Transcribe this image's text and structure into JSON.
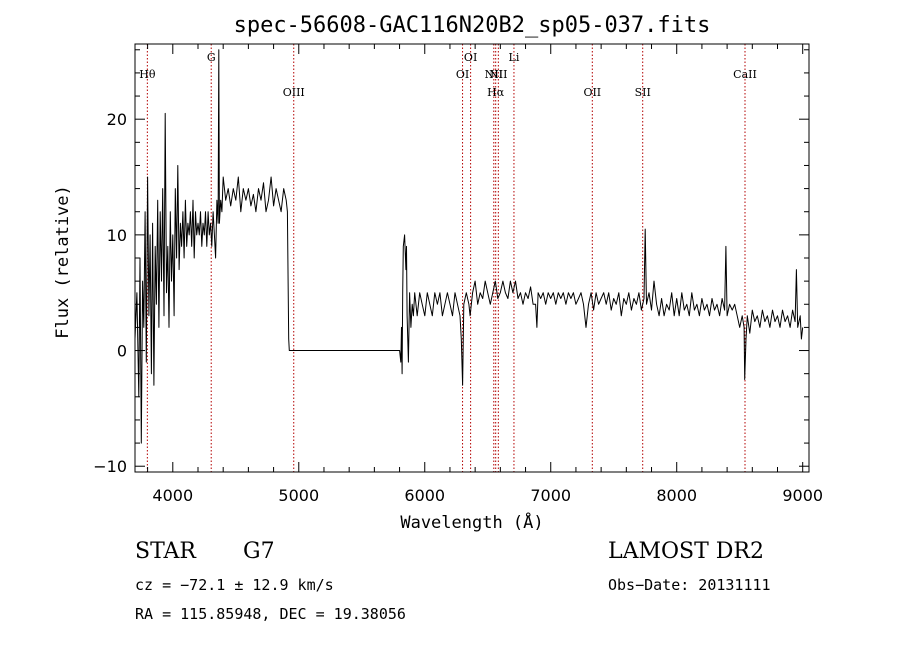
{
  "chart_data": {
    "type": "line",
    "title": "spec-56608-GAC116N20B2_sp05-037.fits",
    "xlabel": "Wavelength (Å)",
    "ylabel": "Flux (relative)",
    "xlim": [
      3700,
      9050
    ],
    "ylim": [
      -10.5,
      26.5
    ],
    "xticks": [
      4000,
      5000,
      6000,
      7000,
      8000,
      9000
    ],
    "yticks": [
      -10,
      0,
      10,
      20
    ],
    "grid": false,
    "series": [
      {
        "points": [
          [
            3700,
            1
          ],
          [
            3715,
            5
          ],
          [
            3730,
            -4
          ],
          [
            3740,
            8
          ],
          [
            3750,
            -8
          ],
          [
            3760,
            6
          ],
          [
            3770,
            2
          ],
          [
            3780,
            12
          ],
          [
            3790,
            -1
          ],
          [
            3800,
            15
          ],
          [
            3810,
            3
          ],
          [
            3820,
            10
          ],
          [
            3830,
            -2
          ],
          [
            3840,
            11
          ],
          [
            3850,
            -3
          ],
          [
            3860,
            9
          ],
          [
            3870,
            4
          ],
          [
            3880,
            13
          ],
          [
            3890,
            2
          ],
          [
            3900,
            12
          ],
          [
            3910,
            6
          ],
          [
            3920,
            14
          ],
          [
            3930,
            3
          ],
          [
            3940,
            20.5
          ],
          [
            3950,
            5
          ],
          [
            3960,
            9
          ],
          [
            3970,
            2
          ],
          [
            3980,
            12
          ],
          [
            3990,
            6
          ],
          [
            4000,
            10
          ],
          [
            4010,
            3
          ],
          [
            4020,
            14
          ],
          [
            4030,
            8
          ],
          [
            4040,
            16
          ],
          [
            4050,
            7
          ],
          [
            4060,
            11
          ],
          [
            4070,
            9
          ],
          [
            4080,
            12
          ],
          [
            4090,
            8
          ],
          [
            4100,
            13
          ],
          [
            4110,
            9
          ],
          [
            4120,
            11
          ],
          [
            4130,
            10
          ],
          [
            4140,
            12
          ],
          [
            4150,
            9
          ],
          [
            4160,
            13
          ],
          [
            4170,
            8
          ],
          [
            4180,
            12
          ],
          [
            4190,
            10
          ],
          [
            4200,
            11
          ],
          [
            4210,
            10
          ],
          [
            4220,
            12
          ],
          [
            4230,
            9
          ],
          [
            4240,
            11
          ],
          [
            4250,
            10
          ],
          [
            4260,
            12
          ],
          [
            4270,
            9
          ],
          [
            4280,
            12
          ],
          [
            4290,
            10
          ],
          [
            4300,
            11
          ],
          [
            4310,
            9
          ],
          [
            4320,
            12
          ],
          [
            4330,
            10
          ],
          [
            4340,
            8
          ],
          [
            4350,
            13
          ],
          [
            4360,
            11
          ],
          [
            4365,
            26
          ],
          [
            4370,
            11
          ],
          [
            4380,
            13
          ],
          [
            4390,
            12
          ],
          [
            4400,
            15
          ],
          [
            4420,
            13
          ],
          [
            4440,
            14
          ],
          [
            4460,
            12.5
          ],
          [
            4480,
            14
          ],
          [
            4500,
            13
          ],
          [
            4520,
            15
          ],
          [
            4540,
            12
          ],
          [
            4560,
            14
          ],
          [
            4580,
            13
          ],
          [
            4600,
            14
          ],
          [
            4620,
            12.5
          ],
          [
            4640,
            13.5
          ],
          [
            4660,
            12
          ],
          [
            4680,
            14
          ],
          [
            4700,
            13
          ],
          [
            4720,
            14.5
          ],
          [
            4740,
            12
          ],
          [
            4760,
            13
          ],
          [
            4780,
            15
          ],
          [
            4800,
            12.5
          ],
          [
            4820,
            14
          ],
          [
            4840,
            13
          ],
          [
            4860,
            12
          ],
          [
            4880,
            14
          ],
          [
            4900,
            13
          ],
          [
            4910,
            12
          ],
          [
            4915,
            6
          ],
          [
            4920,
            1
          ],
          [
            4925,
            0
          ],
          [
            5000,
            0
          ],
          [
            5200,
            0
          ],
          [
            5400,
            0
          ],
          [
            5600,
            0
          ],
          [
            5800,
            0
          ],
          [
            5810,
            -1
          ],
          [
            5815,
            2
          ],
          [
            5820,
            -2
          ],
          [
            5825,
            5
          ],
          [
            5830,
            9
          ],
          [
            5840,
            10
          ],
          [
            5850,
            7
          ],
          [
            5855,
            9
          ],
          [
            5860,
            3
          ],
          [
            5870,
            -1
          ],
          [
            5880,
            5
          ],
          [
            5890,
            2
          ],
          [
            5900,
            4
          ],
          [
            5910,
            3
          ],
          [
            5920,
            5
          ],
          [
            5940,
            3
          ],
          [
            5960,
            5
          ],
          [
            5980,
            4
          ],
          [
            6000,
            3
          ],
          [
            6020,
            5
          ],
          [
            6040,
            4
          ],
          [
            6060,
            3
          ],
          [
            6080,
            5
          ],
          [
            6100,
            4
          ],
          [
            6120,
            5
          ],
          [
            6140,
            3
          ],
          [
            6160,
            4
          ],
          [
            6180,
            5
          ],
          [
            6200,
            4
          ],
          [
            6220,
            3
          ],
          [
            6240,
            5
          ],
          [
            6260,
            4
          ],
          [
            6280,
            3
          ],
          [
            6290,
            1
          ],
          [
            6300,
            -3
          ],
          [
            6310,
            4
          ],
          [
            6330,
            5
          ],
          [
            6350,
            4
          ],
          [
            6360,
            3
          ],
          [
            6380,
            5
          ],
          [
            6400,
            6
          ],
          [
            6420,
            4
          ],
          [
            6440,
            5
          ],
          [
            6460,
            4.5
          ],
          [
            6480,
            6
          ],
          [
            6500,
            5
          ],
          [
            6520,
            4
          ],
          [
            6540,
            5
          ],
          [
            6560,
            6
          ],
          [
            6580,
            4.5
          ],
          [
            6600,
            5
          ],
          [
            6620,
            6
          ],
          [
            6640,
            5
          ],
          [
            6660,
            4.5
          ],
          [
            6680,
            6
          ],
          [
            6700,
            5
          ],
          [
            6720,
            6
          ],
          [
            6740,
            4.5
          ],
          [
            6760,
            5
          ],
          [
            6780,
            4
          ],
          [
            6800,
            5
          ],
          [
            6820,
            4.5
          ],
          [
            6840,
            5.5
          ],
          [
            6860,
            4
          ],
          [
            6880,
            4
          ],
          [
            6890,
            2
          ],
          [
            6900,
            5
          ],
          [
            6920,
            4.5
          ],
          [
            6940,
            5
          ],
          [
            6960,
            4
          ],
          [
            6980,
            5
          ],
          [
            7000,
            4.5
          ],
          [
            7020,
            5
          ],
          [
            7040,
            4
          ],
          [
            7060,
            5
          ],
          [
            7080,
            4.5
          ],
          [
            7100,
            5
          ],
          [
            7120,
            4
          ],
          [
            7140,
            5
          ],
          [
            7160,
            4.5
          ],
          [
            7180,
            5
          ],
          [
            7200,
            4
          ],
          [
            7220,
            4.5
          ],
          [
            7240,
            5
          ],
          [
            7260,
            4
          ],
          [
            7280,
            2
          ],
          [
            7300,
            4
          ],
          [
            7320,
            5
          ],
          [
            7340,
            3.5
          ],
          [
            7360,
            5
          ],
          [
            7380,
            4
          ],
          [
            7400,
            4.5
          ],
          [
            7420,
            5
          ],
          [
            7440,
            4
          ],
          [
            7460,
            5
          ],
          [
            7480,
            3.5
          ],
          [
            7500,
            4.5
          ],
          [
            7520,
            4
          ],
          [
            7540,
            5
          ],
          [
            7560,
            3
          ],
          [
            7580,
            4.5
          ],
          [
            7600,
            4
          ],
          [
            7620,
            5
          ],
          [
            7640,
            3.5
          ],
          [
            7660,
            4.5
          ],
          [
            7680,
            4
          ],
          [
            7700,
            5
          ],
          [
            7720,
            3.5
          ],
          [
            7740,
            4.5
          ],
          [
            7750,
            10.5
          ],
          [
            7760,
            4
          ],
          [
            7780,
            5
          ],
          [
            7800,
            3.5
          ],
          [
            7820,
            6
          ],
          [
            7840,
            4
          ],
          [
            7860,
            3
          ],
          [
            7880,
            4.5
          ],
          [
            7900,
            3
          ],
          [
            7920,
            4
          ],
          [
            7940,
            3.5
          ],
          [
            7960,
            5
          ],
          [
            7980,
            3
          ],
          [
            8000,
            4.5
          ],
          [
            8020,
            3
          ],
          [
            8040,
            5
          ],
          [
            8060,
            3.5
          ],
          [
            8080,
            4
          ],
          [
            8100,
            3
          ],
          [
            8120,
            5
          ],
          [
            8140,
            3.5
          ],
          [
            8160,
            4
          ],
          [
            8180,
            3
          ],
          [
            8200,
            4.5
          ],
          [
            8220,
            3.5
          ],
          [
            8240,
            4
          ],
          [
            8260,
            3
          ],
          [
            8280,
            4.5
          ],
          [
            8300,
            3.5
          ],
          [
            8320,
            4
          ],
          [
            8340,
            3
          ],
          [
            8360,
            4.5
          ],
          [
            8380,
            3.5
          ],
          [
            8390,
            9
          ],
          [
            8400,
            3
          ],
          [
            8420,
            4
          ],
          [
            8440,
            3.5
          ],
          [
            8460,
            4
          ],
          [
            8480,
            3
          ],
          [
            8500,
            2
          ],
          [
            8520,
            3
          ],
          [
            8535,
            2
          ],
          [
            8540,
            -2.5
          ],
          [
            8550,
            1
          ],
          [
            8560,
            3
          ],
          [
            8580,
            1.5
          ],
          [
            8600,
            3.5
          ],
          [
            8620,
            2.5
          ],
          [
            8640,
            3
          ],
          [
            8660,
            2
          ],
          [
            8680,
            3.5
          ],
          [
            8700,
            2.5
          ],
          [
            8720,
            3
          ],
          [
            8740,
            2
          ],
          [
            8760,
            3.5
          ],
          [
            8780,
            2.5
          ],
          [
            8800,
            3
          ],
          [
            8820,
            2
          ],
          [
            8840,
            3.5
          ],
          [
            8860,
            2.5
          ],
          [
            8880,
            3
          ],
          [
            8900,
            2
          ],
          [
            8920,
            3.5
          ],
          [
            8940,
            2.5
          ],
          [
            8950,
            7
          ],
          [
            8960,
            2
          ],
          [
            8980,
            3
          ],
          [
            8990,
            1
          ],
          [
            9000,
            2
          ]
        ]
      }
    ],
    "lines": [
      {
        "label": "Hθ",
        "x": 3798,
        "row": 2
      },
      {
        "label": "G",
        "x": 4305,
        "row": 1
      },
      {
        "label": "OIII",
        "x": 4960,
        "row": 3
      },
      {
        "label": "OI",
        "x": 6300,
        "row": 2
      },
      {
        "label": "OI",
        "x": 6364,
        "row": 1
      },
      {
        "label": "NII",
        "x": 6548,
        "row": 2
      },
      {
        "label": "Hα",
        "x": 6563,
        "row": 3
      },
      {
        "label": "NII",
        "x": 6584,
        "row": 2
      },
      {
        "label": "Li",
        "x": 6708,
        "row": 1
      },
      {
        "label": "OII",
        "x": 7330,
        "row": 3
      },
      {
        "label": "SII",
        "x": 7730,
        "row": 3
      },
      {
        "label": "CaII",
        "x": 8542,
        "row": 2
      }
    ],
    "line_color": "#b30000"
  },
  "info": {
    "class": "STAR",
    "subclass": "G7",
    "survey": "LAMOST DR2",
    "cz": "cz = −72.1 ± 12.9 km/s",
    "obs_date": "Obs−Date: 20131111",
    "coords": "RA = 115.85948, DEC =  19.38056"
  }
}
